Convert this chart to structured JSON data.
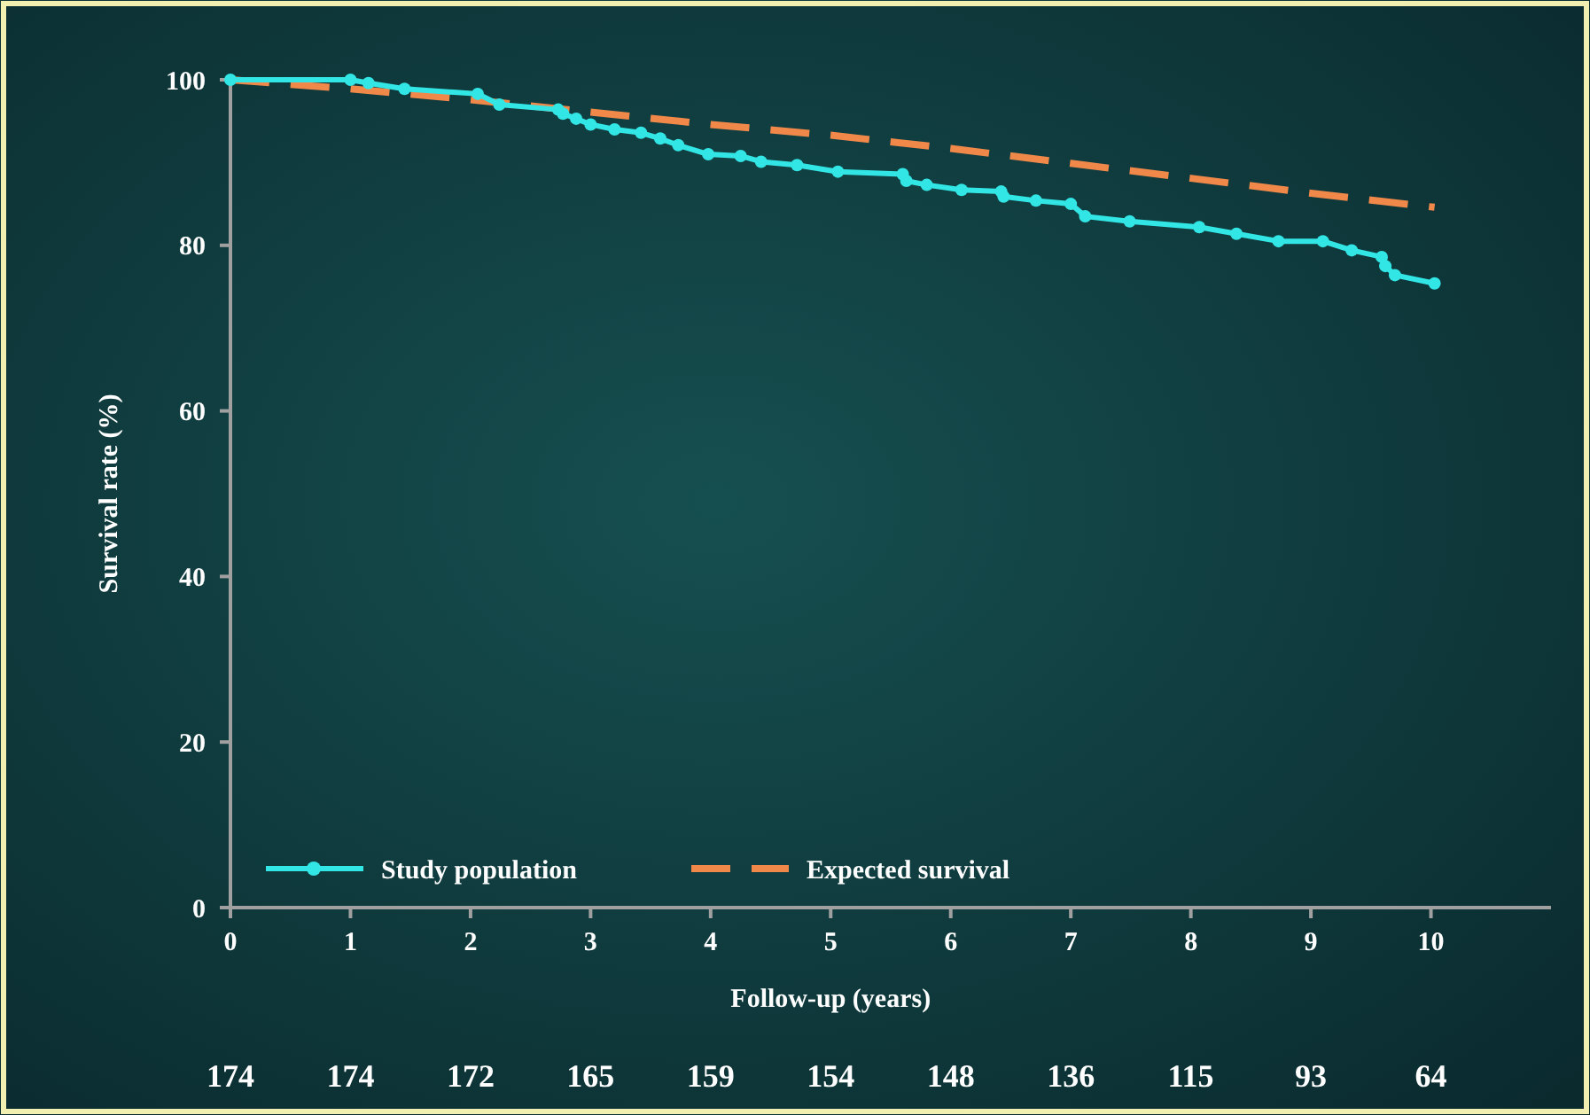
{
  "chart_data": {
    "type": "line",
    "xlabel": "Follow-up (years)",
    "ylabel": "Survival rate (%)",
    "xlim": [
      0,
      11
    ],
    "ylim": [
      0,
      100
    ],
    "xticks": [
      0,
      1,
      2,
      3,
      4,
      5,
      6,
      7,
      8,
      9,
      10
    ],
    "yticks": [
      0,
      20,
      40,
      60,
      80,
      100
    ],
    "grid": false,
    "legend": "bottom left",
    "series": [
      {
        "name": "Study population",
        "color": "#33e6e6",
        "marker": "circle",
        "line_style": "solid",
        "x": [
          0,
          1.0,
          1.15,
          1.45,
          2.06,
          2.24,
          2.73,
          2.77,
          2.88,
          3.0,
          3.2,
          3.42,
          3.58,
          3.73,
          3.98,
          4.25,
          4.42,
          4.72,
          5.06,
          5.6,
          5.63,
          5.8,
          6.09,
          6.42,
          6.44,
          6.71,
          7.0,
          7.12,
          7.49,
          8.07,
          8.38,
          8.73,
          9.1,
          9.34,
          9.59,
          9.62,
          9.7,
          10.03
        ],
        "values": [
          100,
          100,
          99.6,
          98.9,
          98.3,
          97,
          96.4,
          95.9,
          95.3,
          94.6,
          94,
          93.6,
          92.9,
          92.1,
          91,
          90.8,
          90.1,
          89.7,
          88.9,
          88.6,
          87.8,
          87.3,
          86.7,
          86.5,
          85.9,
          85.4,
          85,
          83.5,
          82.9,
          82.2,
          81.4,
          80.5,
          80.5,
          79.4,
          78.6,
          77.5,
          76.4,
          75.4
        ]
      },
      {
        "name": "Expected survival",
        "color": "#f0884a",
        "marker": "none",
        "line_style": "dashed",
        "x": [
          0,
          1,
          2,
          3,
          4,
          5,
          6,
          7,
          8,
          9,
          10.03
        ],
        "values": [
          100,
          98.9,
          97.6,
          96.1,
          94.6,
          93.3,
          91.7,
          89.9,
          88.1,
          86.3,
          84.6
        ]
      }
    ],
    "annotations": [
      "174",
      "174",
      "172",
      "165",
      "159",
      "154",
      "148",
      "136",
      "115",
      "93",
      "64"
    ]
  }
}
